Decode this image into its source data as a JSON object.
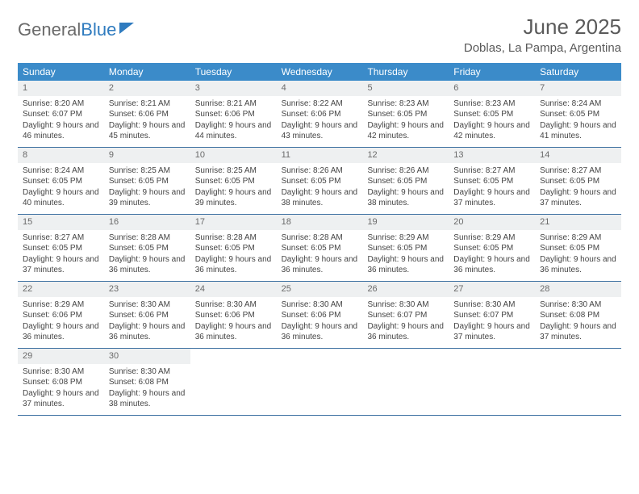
{
  "logo": {
    "part1": "General",
    "part2": "Blue"
  },
  "header": {
    "month_title": "June 2025",
    "location": "Doblas, La Pampa, Argentina"
  },
  "colors": {
    "header_bg": "#3b8bc9",
    "header_text": "#ffffff",
    "daynum_bg": "#eef0f1",
    "border": "#3b6fa0",
    "logo_gray": "#6a6a6a",
    "logo_blue": "#2f7bbf"
  },
  "daysOfWeek": [
    "Sunday",
    "Monday",
    "Tuesday",
    "Wednesday",
    "Thursday",
    "Friday",
    "Saturday"
  ],
  "weeks": [
    [
      {
        "n": "1",
        "sr": "Sunrise: 8:20 AM",
        "ss": "Sunset: 6:07 PM",
        "dl": "Daylight: 9 hours and 46 minutes."
      },
      {
        "n": "2",
        "sr": "Sunrise: 8:21 AM",
        "ss": "Sunset: 6:06 PM",
        "dl": "Daylight: 9 hours and 45 minutes."
      },
      {
        "n": "3",
        "sr": "Sunrise: 8:21 AM",
        "ss": "Sunset: 6:06 PM",
        "dl": "Daylight: 9 hours and 44 minutes."
      },
      {
        "n": "4",
        "sr": "Sunrise: 8:22 AM",
        "ss": "Sunset: 6:06 PM",
        "dl": "Daylight: 9 hours and 43 minutes."
      },
      {
        "n": "5",
        "sr": "Sunrise: 8:23 AM",
        "ss": "Sunset: 6:05 PM",
        "dl": "Daylight: 9 hours and 42 minutes."
      },
      {
        "n": "6",
        "sr": "Sunrise: 8:23 AM",
        "ss": "Sunset: 6:05 PM",
        "dl": "Daylight: 9 hours and 42 minutes."
      },
      {
        "n": "7",
        "sr": "Sunrise: 8:24 AM",
        "ss": "Sunset: 6:05 PM",
        "dl": "Daylight: 9 hours and 41 minutes."
      }
    ],
    [
      {
        "n": "8",
        "sr": "Sunrise: 8:24 AM",
        "ss": "Sunset: 6:05 PM",
        "dl": "Daylight: 9 hours and 40 minutes."
      },
      {
        "n": "9",
        "sr": "Sunrise: 8:25 AM",
        "ss": "Sunset: 6:05 PM",
        "dl": "Daylight: 9 hours and 39 minutes."
      },
      {
        "n": "10",
        "sr": "Sunrise: 8:25 AM",
        "ss": "Sunset: 6:05 PM",
        "dl": "Daylight: 9 hours and 39 minutes."
      },
      {
        "n": "11",
        "sr": "Sunrise: 8:26 AM",
        "ss": "Sunset: 6:05 PM",
        "dl": "Daylight: 9 hours and 38 minutes."
      },
      {
        "n": "12",
        "sr": "Sunrise: 8:26 AM",
        "ss": "Sunset: 6:05 PM",
        "dl": "Daylight: 9 hours and 38 minutes."
      },
      {
        "n": "13",
        "sr": "Sunrise: 8:27 AM",
        "ss": "Sunset: 6:05 PM",
        "dl": "Daylight: 9 hours and 37 minutes."
      },
      {
        "n": "14",
        "sr": "Sunrise: 8:27 AM",
        "ss": "Sunset: 6:05 PM",
        "dl": "Daylight: 9 hours and 37 minutes."
      }
    ],
    [
      {
        "n": "15",
        "sr": "Sunrise: 8:27 AM",
        "ss": "Sunset: 6:05 PM",
        "dl": "Daylight: 9 hours and 37 minutes."
      },
      {
        "n": "16",
        "sr": "Sunrise: 8:28 AM",
        "ss": "Sunset: 6:05 PM",
        "dl": "Daylight: 9 hours and 36 minutes."
      },
      {
        "n": "17",
        "sr": "Sunrise: 8:28 AM",
        "ss": "Sunset: 6:05 PM",
        "dl": "Daylight: 9 hours and 36 minutes."
      },
      {
        "n": "18",
        "sr": "Sunrise: 8:28 AM",
        "ss": "Sunset: 6:05 PM",
        "dl": "Daylight: 9 hours and 36 minutes."
      },
      {
        "n": "19",
        "sr": "Sunrise: 8:29 AM",
        "ss": "Sunset: 6:05 PM",
        "dl": "Daylight: 9 hours and 36 minutes."
      },
      {
        "n": "20",
        "sr": "Sunrise: 8:29 AM",
        "ss": "Sunset: 6:05 PM",
        "dl": "Daylight: 9 hours and 36 minutes."
      },
      {
        "n": "21",
        "sr": "Sunrise: 8:29 AM",
        "ss": "Sunset: 6:05 PM",
        "dl": "Daylight: 9 hours and 36 minutes."
      }
    ],
    [
      {
        "n": "22",
        "sr": "Sunrise: 8:29 AM",
        "ss": "Sunset: 6:06 PM",
        "dl": "Daylight: 9 hours and 36 minutes."
      },
      {
        "n": "23",
        "sr": "Sunrise: 8:30 AM",
        "ss": "Sunset: 6:06 PM",
        "dl": "Daylight: 9 hours and 36 minutes."
      },
      {
        "n": "24",
        "sr": "Sunrise: 8:30 AM",
        "ss": "Sunset: 6:06 PM",
        "dl": "Daylight: 9 hours and 36 minutes."
      },
      {
        "n": "25",
        "sr": "Sunrise: 8:30 AM",
        "ss": "Sunset: 6:06 PM",
        "dl": "Daylight: 9 hours and 36 minutes."
      },
      {
        "n": "26",
        "sr": "Sunrise: 8:30 AM",
        "ss": "Sunset: 6:07 PM",
        "dl": "Daylight: 9 hours and 36 minutes."
      },
      {
        "n": "27",
        "sr": "Sunrise: 8:30 AM",
        "ss": "Sunset: 6:07 PM",
        "dl": "Daylight: 9 hours and 37 minutes."
      },
      {
        "n": "28",
        "sr": "Sunrise: 8:30 AM",
        "ss": "Sunset: 6:08 PM",
        "dl": "Daylight: 9 hours and 37 minutes."
      }
    ],
    [
      {
        "n": "29",
        "sr": "Sunrise: 8:30 AM",
        "ss": "Sunset: 6:08 PM",
        "dl": "Daylight: 9 hours and 37 minutes."
      },
      {
        "n": "30",
        "sr": "Sunrise: 8:30 AM",
        "ss": "Sunset: 6:08 PM",
        "dl": "Daylight: 9 hours and 38 minutes."
      },
      {
        "empty": true
      },
      {
        "empty": true
      },
      {
        "empty": true
      },
      {
        "empty": true
      },
      {
        "empty": true
      }
    ]
  ]
}
